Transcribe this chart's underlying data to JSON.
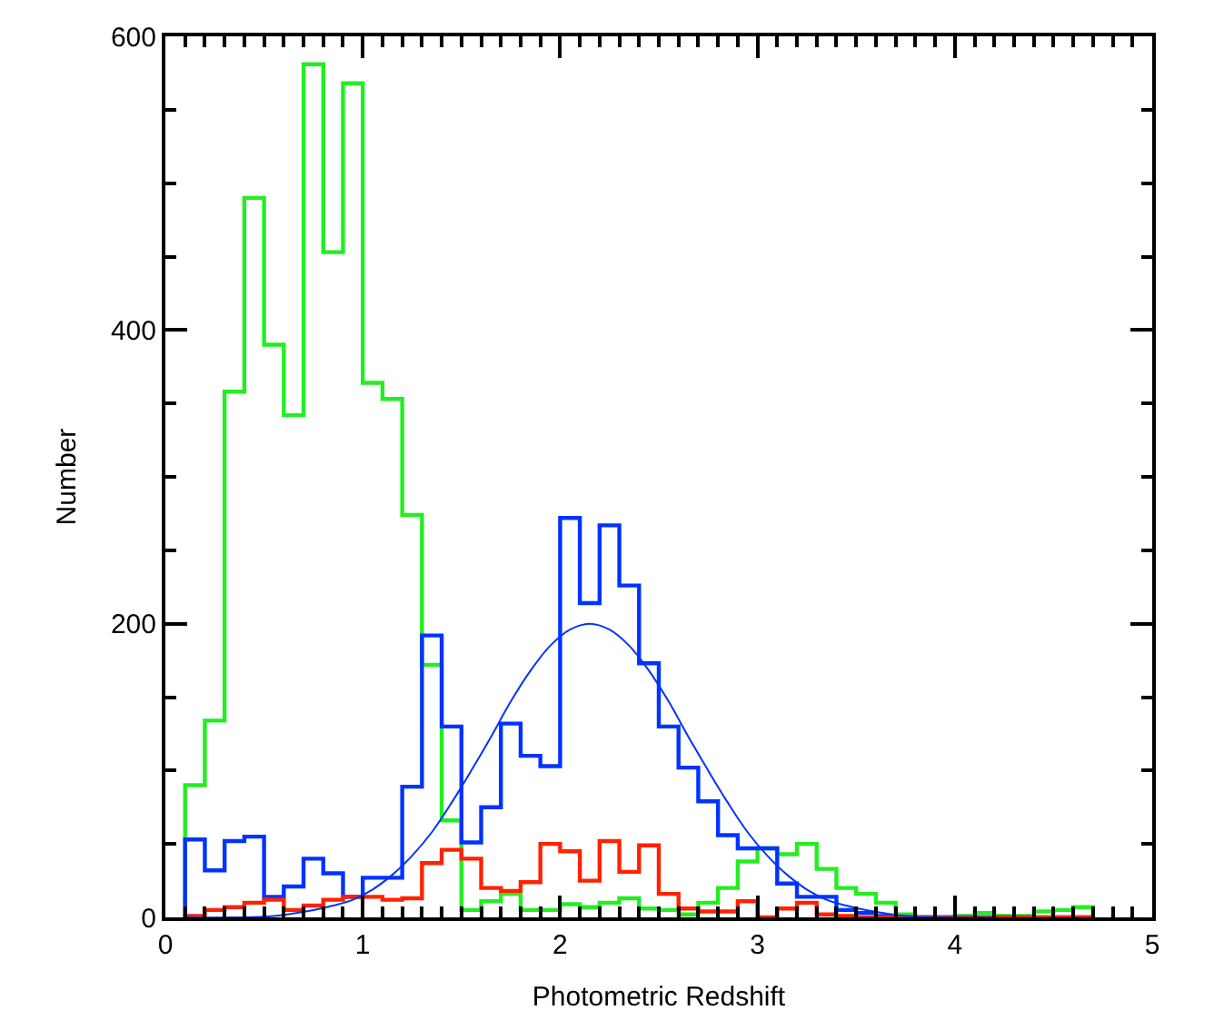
{
  "chart_data": {
    "type": "histogram",
    "xlabel": "Photometric Redshift",
    "ylabel": "Number",
    "bins": [
      0.1,
      0.2,
      0.3,
      0.4,
      0.5,
      0.6,
      0.7,
      0.8,
      0.9,
      1.0,
      1.1,
      1.2,
      1.3,
      1.4,
      1.5,
      1.6,
      1.7,
      1.8,
      1.9,
      2.0,
      2.1,
      2.2,
      2.3,
      2.4,
      2.5,
      2.6,
      2.7,
      2.8,
      2.9,
      3.0,
      3.1,
      3.2,
      3.3,
      3.4,
      3.5,
      3.6,
      3.7,
      3.8,
      3.9,
      4.0,
      4.1,
      4.2,
      4.3,
      4.4,
      4.5,
      4.6,
      4.7
    ],
    "series": [
      {
        "color": "#22ee22",
        "values": [
          90,
          134,
          358,
          490,
          390,
          342,
          581,
          453,
          568,
          364,
          353,
          274,
          172,
          66,
          5,
          11,
          16,
          5,
          5,
          9,
          7,
          10,
          13,
          6,
          5,
          2,
          10,
          20,
          38,
          47,
          43,
          50,
          33,
          20,
          16,
          10,
          2,
          0,
          0,
          1,
          3,
          1,
          1,
          4,
          5,
          7
        ]
      },
      {
        "color": "#0033ff",
        "values": [
          53,
          32,
          52,
          55,
          14,
          21,
          40,
          30,
          14,
          27,
          27,
          89,
          192,
          130,
          51,
          75,
          132,
          110,
          103,
          272,
          214,
          267,
          226,
          173,
          130,
          102,
          79,
          56,
          47,
          47,
          23,
          14,
          14,
          5,
          3,
          1,
          0,
          0,
          0,
          0,
          0,
          0,
          0,
          0,
          0,
          0
        ]
      },
      {
        "color": "#ff2200",
        "values": [
          1,
          5,
          7,
          10,
          12,
          5,
          8,
          12,
          14,
          14,
          12,
          13,
          37,
          46,
          40,
          20,
          18,
          24,
          50,
          45,
          25,
          52,
          31,
          49,
          16,
          6,
          4,
          4,
          11,
          0,
          6,
          10,
          2,
          1,
          0,
          0,
          0,
          0,
          0,
          0,
          0,
          0,
          0,
          0,
          0,
          0
        ]
      },
      {
        "type": "line",
        "color": "#0033ff",
        "x": [
          0.1,
          0.35,
          0.55,
          0.75,
          0.85,
          0.95,
          1.05,
          1.15,
          1.25,
          1.35,
          1.45,
          1.55,
          1.65,
          1.75,
          1.85,
          1.95,
          2.05,
          2.15,
          2.25,
          2.35,
          2.45,
          2.55,
          2.65,
          2.75,
          2.85,
          2.95,
          3.05,
          3.15,
          3.25,
          3.35,
          3.45,
          3.55,
          3.75,
          3.95,
          4.2
        ],
        "values": [
          0,
          0,
          1,
          5,
          8,
          12,
          19,
          29,
          42,
          58,
          78,
          100,
          123,
          147,
          168,
          185,
          196,
          200,
          196,
          185,
          168,
          147,
          123,
          100,
          78,
          58,
          42,
          29,
          19,
          12,
          8,
          5,
          1,
          0,
          0
        ]
      }
    ],
    "xlim": [
      0,
      5
    ],
    "xticks": [
      0,
      1,
      2,
      3,
      4,
      5
    ],
    "ylim": [
      0,
      600
    ],
    "yticks": [
      0,
      200,
      400,
      600
    ]
  }
}
